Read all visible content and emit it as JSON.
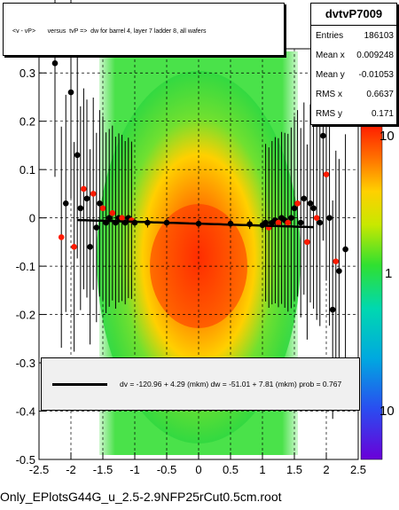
{
  "chart_data": {
    "type": "scatter",
    "title": "<v - vP>       versus  tvP =>  dw for barrel 4, layer 7 ladder 8, all wafers",
    "xlim": [
      -2.5,
      2.5
    ],
    "ylim": [
      -0.5,
      0.35
    ],
    "x_ticks": [
      "-2.5",
      "-2",
      "-1.5",
      "-1",
      "-0.5",
      "0",
      "0.5",
      "1",
      "1.5",
      "2",
      "2.5"
    ],
    "y_ticks": [
      "-0.5",
      "-0.4",
      "-0.3",
      "-0.2",
      "-0.1",
      "0",
      "0.1",
      "0.2",
      "0.3"
    ],
    "z_ticks": [
      "10",
      "1",
      "10"
    ],
    "grid": true,
    "log_z": true,
    "profile_points": {
      "x": [
        -2.25,
        -2.15,
        -2.08,
        -2.0,
        -1.95,
        -1.9,
        -1.85,
        -1.8,
        -1.75,
        -1.7,
        -1.65,
        -1.6,
        -1.55,
        -1.5,
        -1.45,
        -1.4,
        -1.35,
        -1.3,
        -1.25,
        -1.2,
        -1.15,
        -1.1,
        -1.05,
        -1.0,
        -0.8,
        -0.5,
        0.0,
        0.5,
        0.8,
        1.0,
        1.05,
        1.1,
        1.15,
        1.2,
        1.25,
        1.3,
        1.35,
        1.4,
        1.45,
        1.5,
        1.55,
        1.6,
        1.65,
        1.7,
        1.75,
        1.8,
        1.85,
        1.9,
        1.95,
        2.0,
        2.05,
        2.1,
        2.15,
        2.2,
        2.3
      ],
      "y": [
        0.32,
        -0.04,
        0.03,
        0.26,
        -0.06,
        0.13,
        0.02,
        0.06,
        0.04,
        -0.06,
        0.05,
        -0.02,
        0.03,
        0.02,
        -0.01,
        0.0,
        0.01,
        -0.01,
        0.0,
        0.0,
        -0.01,
        0.0,
        -0.005,
        -0.01,
        -0.01,
        -0.01,
        -0.012,
        -0.012,
        -0.013,
        -0.015,
        -0.01,
        -0.02,
        -0.01,
        -0.005,
        -0.01,
        0.0,
        -0.005,
        -0.01,
        0.0,
        0.02,
        0.03,
        -0.01,
        0.04,
        -0.05,
        0.03,
        0.02,
        0.0,
        -0.01,
        0.17,
        0.09,
        0.0,
        -0.19,
        -0.09,
        -0.11,
        -0.065
      ]
    },
    "fit": {
      "slope": -120.96,
      "slope_err": 4.29,
      "intercept": -51.01,
      "intercept_err": 7.81
    }
  },
  "stats": {
    "name": "dvtvP7009",
    "rows": [
      {
        "k": "Entries",
        "v": "186103"
      },
      {
        "k": "Mean x",
        "v": "0.009248"
      },
      {
        "k": "Mean y",
        "v": "-0.01053"
      },
      {
        "k": "RMS x",
        "v": "0.6637"
      },
      {
        "k": "RMS y",
        "v": "0.171"
      }
    ]
  },
  "legend": {
    "fit_text": "dv = -120.96 +  4.29 (mkm) dw =  -51.01 +  7.81 (mkm) prob = 0.767"
  },
  "footer": {
    "filename": "Only_EPlotsG44G_u_2.5-2.9NFP25rCut0.5cm.root"
  },
  "colors": {
    "palette": [
      "#6a00d8",
      "#2a4cf0",
      "#00a8e0",
      "#00d8b0",
      "#30e030",
      "#c8e800",
      "#ffd000",
      "#ff7000",
      "#ff1a00"
    ]
  }
}
